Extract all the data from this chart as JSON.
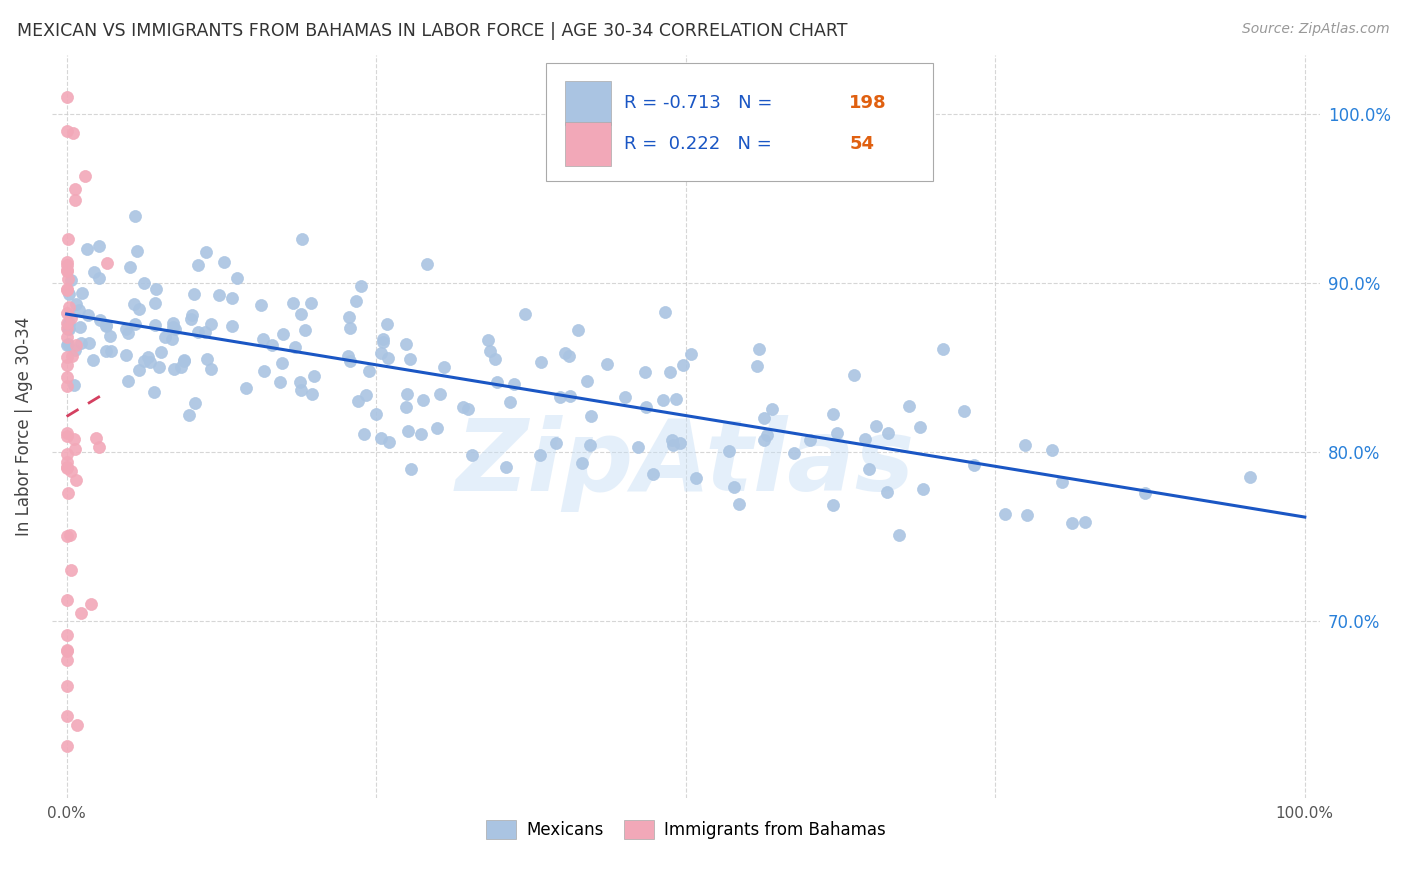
{
  "title": "MEXICAN VS IMMIGRANTS FROM BAHAMAS IN LABOR FORCE | AGE 30-34 CORRELATION CHART",
  "source": "Source: ZipAtlas.com",
  "ylabel": "In Labor Force | Age 30-34",
  "legend_labels": [
    "Mexicans",
    "Immigrants from Bahamas"
  ],
  "blue_color": "#aac4e2",
  "pink_color": "#f2a8b8",
  "blue_line_color": "#1a56c4",
  "pink_line_color": "#d44060",
  "r_blue": -0.713,
  "n_blue": 198,
  "r_pink": 0.222,
  "n_pink": 54,
  "n_text_color": "#e06010",
  "watermark": "ZipAtlas",
  "title_color": "#333333",
  "axis_label_color": "#444444",
  "tick_color_right": "#2980d9",
  "tick_color_bottom": "#555555",
  "grid_color": "#cccccc",
  "background_color": "#ffffff",
  "blue_seed": 42,
  "pink_seed": 77,
  "y_tick_values": [
    0.7,
    0.8,
    0.9,
    1.0
  ],
  "y_tick_labels": [
    "70.0%",
    "80.0%",
    "90.0%",
    "100.0%"
  ],
  "xlim": [
    -0.012,
    1.012
  ],
  "ylim": [
    0.595,
    1.035
  ]
}
